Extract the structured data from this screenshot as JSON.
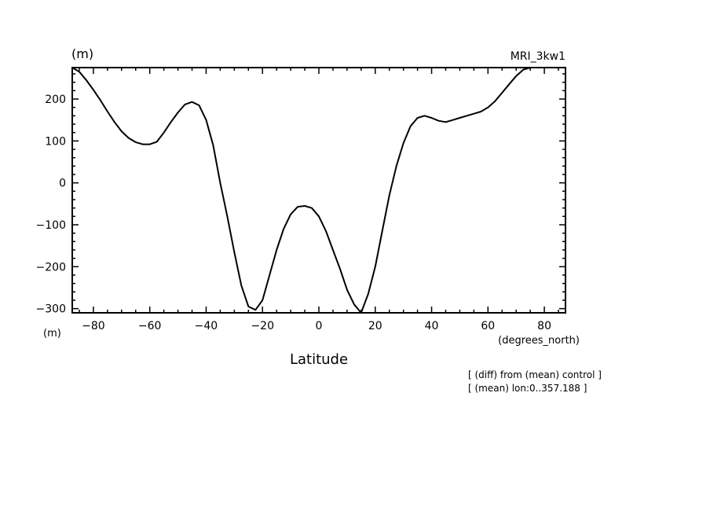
{
  "chart_data": {
    "type": "line",
    "title": "MRI_3kw1",
    "ylabel": "(m)",
    "ylabel_bottom": "(m)",
    "xlabel": "Latitude",
    "xunits": "(degrees_north)",
    "notes": [
      "[ (diff) from (mean) control ]",
      "[ (mean) lon:0..357.188 ]"
    ],
    "xlim": [
      -87.5,
      87.5
    ],
    "ylim": [
      -310,
      275
    ],
    "xticks": [
      -80,
      -60,
      -40,
      -20,
      0,
      20,
      40,
      60,
      80
    ],
    "xtick_labels": [
      "-80",
      "-60",
      "-40",
      "-20",
      "0",
      "20",
      "40",
      "60",
      "80"
    ],
    "yticks": [
      -300,
      -200,
      -100,
      0,
      100,
      200
    ],
    "ytick_labels": [
      "-300",
      "-200",
      "-100",
      "0",
      "100",
      "200"
    ],
    "grid": false,
    "series": [
      {
        "x": [
          -87.5,
          -85,
          -82.5,
          -80,
          -77.5,
          -75,
          -72.5,
          -70,
          -67.5,
          -65,
          -62.5,
          -60,
          -57.5,
          -55,
          -52.5,
          -50,
          -47.5,
          -45,
          -42.5,
          -40,
          -37.5,
          -35,
          -32.5,
          -30,
          -27.5,
          -25,
          -22.5,
          -20,
          -17.5,
          -15,
          -12.5,
          -10,
          -7.5,
          -5,
          -2.5,
          0,
          2.5,
          5,
          7.5,
          10,
          12.5,
          15,
          17.5,
          20,
          22.5,
          25,
          27.5,
          30,
          32.5,
          35,
          37.5,
          40,
          42.5,
          45,
          47.5,
          50,
          52.5,
          55,
          57.5,
          60,
          62.5,
          65,
          67.5,
          70,
          72.5,
          75,
          77.5,
          80,
          82.5,
          85,
          87.5
        ],
        "y": [
          275,
          265,
          245,
          222,
          197,
          170,
          145,
          123,
          107,
          97,
          92,
          92,
          98,
          120,
          145,
          168,
          187,
          193,
          185,
          150,
          90,
          0,
          -80,
          -165,
          -245,
          -295,
          -303,
          -280,
          -220,
          -160,
          -110,
          -75,
          -57,
          -55,
          -60,
          -80,
          -115,
          -160,
          -205,
          -255,
          -290,
          -310,
          -265,
          -200,
          -115,
          -30,
          40,
          95,
          135,
          155,
          160,
          155,
          148,
          145,
          150,
          155,
          160,
          165,
          170,
          180,
          195,
          215,
          235,
          255,
          270,
          275,
          275,
          275,
          275,
          275,
          275
        ]
      }
    ]
  }
}
